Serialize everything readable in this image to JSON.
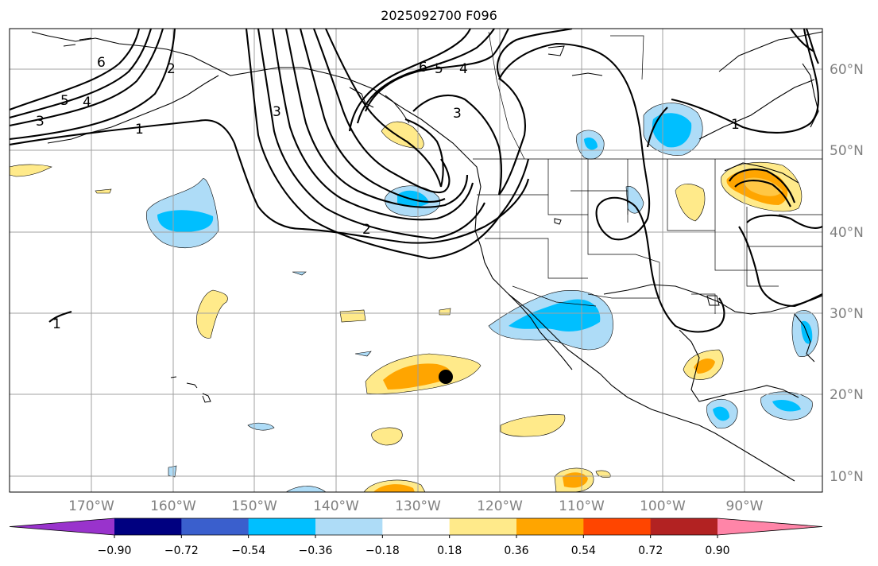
{
  "title": "2025092700 F096",
  "map": {
    "lat_labels": [
      "60°N",
      "50°N",
      "40°N",
      "30°N",
      "20°N",
      "10°N"
    ],
    "lon_labels": [
      "170°W",
      "160°W",
      "150°W",
      "140°W",
      "130°W",
      "120°W",
      "110°W",
      "100°W",
      "90°W"
    ],
    "contour_labels": [
      "6",
      "5",
      "4",
      "3",
      "2",
      "1",
      "6",
      "5",
      "4",
      "3",
      "3",
      "2",
      "1",
      "1"
    ],
    "marker": "storm-center-dot"
  },
  "colorbar": {
    "colors": [
      "#9933cc",
      "#000080",
      "#3a5fcd",
      "#00bfff",
      "#aedcf7",
      "#ffffff",
      "#ffea8a",
      "#ffa500",
      "#ff4500",
      "#b22222",
      "#ff85a8"
    ],
    "tick_labels": [
      "−0.90",
      "−0.72",
      "−0.54",
      "−0.36",
      "−0.18",
      "0.18",
      "0.36",
      "0.54",
      "0.72",
      "0.90"
    ]
  }
}
